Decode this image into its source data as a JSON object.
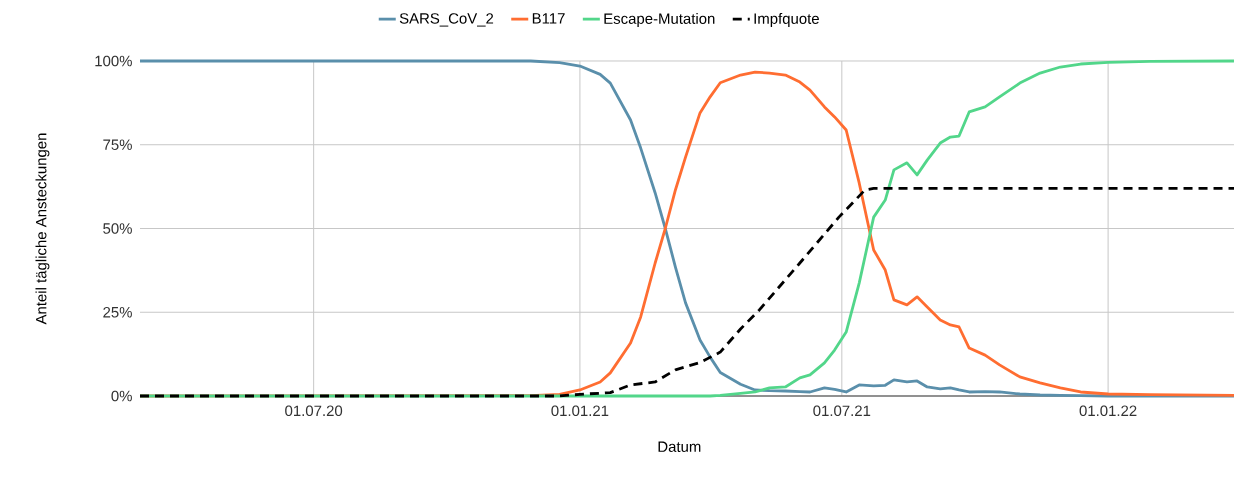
{
  "chart_data": {
    "type": "line",
    "xlabel": "Datum",
    "ylabel": "Anteil tägliche Ansteckungen",
    "x": [
      "2020-03-03",
      "2020-11-28",
      "2020-12-18",
      "2021-01-01",
      "2021-01-15",
      "2021-01-22",
      "2021-02-05",
      "2021-02-12",
      "2021-02-22",
      "2021-03-01",
      "2021-03-08",
      "2021-03-15",
      "2021-03-25",
      "2021-04-01",
      "2021-04-08",
      "2021-04-22",
      "2021-05-02",
      "2021-05-12",
      "2021-05-23",
      "2021-06-02",
      "2021-06-09",
      "2021-06-19",
      "2021-06-26",
      "2021-07-04",
      "2021-07-13",
      "2021-07-23",
      "2021-07-31",
      "2021-08-06",
      "2021-08-15",
      "2021-08-22",
      "2021-08-29",
      "2021-09-07",
      "2021-09-14",
      "2021-09-20",
      "2021-09-27",
      "2021-10-08",
      "2021-10-18",
      "2021-11-01",
      "2021-11-15",
      "2021-11-29",
      "2021-12-13",
      "2022-01-01",
      "2022-01-30",
      "2022-03-29"
    ],
    "series": [
      {
        "name": "SARS_CoV_2",
        "color": "#5a8fab",
        "values": [
          100,
          100,
          99.5,
          98.5,
          96,
          93.4,
          82.4,
          74,
          60.6,
          50,
          38.5,
          27.8,
          16.7,
          11.6,
          7,
          3.5,
          1.8,
          1.6,
          1.5,
          1.3,
          1.2,
          2.4,
          2,
          1.2,
          3.3,
          3,
          3.2,
          4.8,
          4.2,
          4.5,
          2.7,
          2.1,
          2.4,
          1.8,
          1.2,
          1.3,
          1.2,
          0.6,
          0.3,
          0.2,
          0.1,
          0,
          0,
          0
        ]
      },
      {
        "name": "B117",
        "color": "#ff6d31",
        "values": [
          0,
          0.1,
          0.5,
          1.8,
          4.2,
          6.9,
          15.8,
          23.6,
          39.7,
          50,
          61.5,
          71.3,
          84.5,
          89.3,
          93.5,
          95.8,
          96.7,
          96.4,
          95.8,
          93.7,
          91.3,
          86.3,
          83.3,
          79.4,
          63.6,
          43.6,
          37.6,
          28.7,
          27.2,
          29.6,
          26.6,
          22.7,
          21.2,
          20.6,
          14.3,
          12.2,
          9.3,
          5.7,
          3.9,
          2.4,
          1.2,
          0.6,
          0.4,
          0.2
        ]
      },
      {
        "name": "Escape-Mutation",
        "color": "#52d68a",
        "values": [
          0,
          0,
          0,
          0,
          0,
          0,
          0,
          0,
          0,
          0,
          0,
          0,
          0,
          0,
          0.2,
          0.8,
          1.2,
          2.4,
          2.7,
          5.4,
          6.3,
          9.9,
          13.7,
          19.1,
          33.7,
          53.4,
          58.5,
          67.5,
          69.6,
          66,
          70.4,
          75.5,
          77.3,
          77.6,
          84.8,
          86.3,
          89.3,
          93.4,
          96.4,
          98.2,
          99.1,
          99.6,
          99.9,
          100
        ]
      },
      {
        "name": "Impfquote",
        "color": "#000000",
        "line_style": "dashed",
        "x": [
          "2020-03-03",
          "2020-12-18",
          "2021-01-01",
          "2021-01-22",
          "2021-02-05",
          "2021-02-22",
          "2021-03-08",
          "2021-03-25",
          "2021-04-08",
          "2021-04-22",
          "2021-05-05",
          "2021-06-02",
          "2021-06-29",
          "2021-07-17",
          "2021-07-23",
          "2022-03-29"
        ],
        "values": [
          0,
          0,
          0.5,
          1,
          3.3,
          4.2,
          7.8,
          10,
          13.1,
          20,
          25.7,
          39.7,
          53.4,
          61.5,
          62,
          62
        ]
      }
    ],
    "xlim": [
      "2020-03-03",
      "2022-03-29"
    ],
    "xticks": [
      {
        "value": "2020-07-01",
        "label": "01.07.20"
      },
      {
        "value": "2021-01-01",
        "label": "01.01.21"
      },
      {
        "value": "2021-07-01",
        "label": "01.07.21"
      },
      {
        "value": "2022-01-01",
        "label": "01.01.22"
      }
    ],
    "ylim": [
      0,
      100
    ],
    "yticks": [
      {
        "value": 0,
        "label": "0%"
      },
      {
        "value": 25,
        "label": "25%"
      },
      {
        "value": 50,
        "label": "50%"
      },
      {
        "value": 75,
        "label": "75%"
      },
      {
        "value": 100,
        "label": "100%"
      }
    ],
    "grid": true,
    "legend": "top",
    "marker": "none"
  }
}
